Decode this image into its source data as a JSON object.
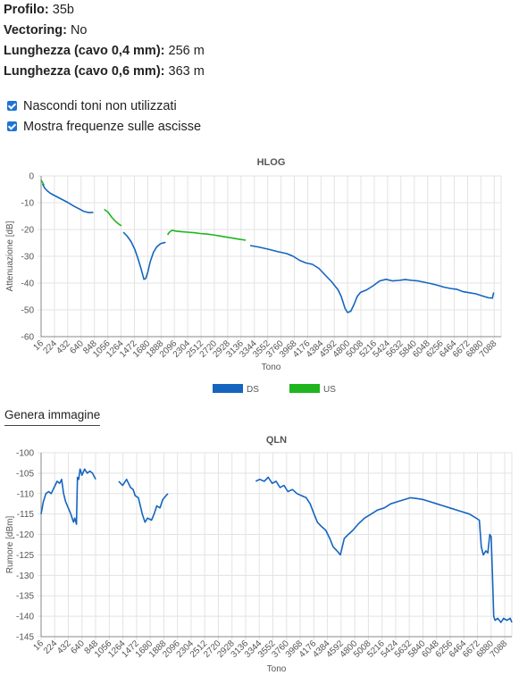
{
  "info": {
    "rows": [
      {
        "label": "Profilo",
        "value": "35b"
      },
      {
        "label": "Vectoring",
        "value": "No"
      },
      {
        "label": "Lunghezza (cavo 0,4 mm)",
        "value": "256 m"
      },
      {
        "label": "Lunghezza (cavo 0,6 mm)",
        "value": "363 m"
      }
    ]
  },
  "options": [
    {
      "label": "Nascondi toni non utilizzati",
      "checked": true
    },
    {
      "label": "Mostra frequenze sulle ascisse",
      "checked": true
    }
  ],
  "generate_image_label": "Genera immagine",
  "colors": {
    "ds": "#1565c0",
    "us": "#1fb51f",
    "grid": "#e3e3e3",
    "axis": "#888888"
  },
  "chart_data": [
    {
      "type": "line",
      "title": "HLOG",
      "xlabel": "Tono",
      "ylabel": "Attenuazione [dB]",
      "ylim": [
        -60,
        0
      ],
      "yticks": [
        0,
        -10,
        -20,
        -30,
        -40,
        -50,
        -60
      ],
      "xlim": [
        16,
        7196
      ],
      "xticks": [
        16,
        224,
        432,
        640,
        848,
        1056,
        1264,
        1472,
        1680,
        1888,
        2096,
        2304,
        2512,
        2720,
        2928,
        3136,
        3344,
        3552,
        3760,
        3968,
        4176,
        4384,
        4592,
        4800,
        5008,
        5216,
        5424,
        5632,
        5840,
        6048,
        6256,
        6464,
        6672,
        6880,
        7088
      ],
      "grid": true,
      "legend": "bottom-center",
      "legend_entries": [
        "DS",
        "US"
      ],
      "series": [
        {
          "name": "US",
          "color": "#1fb51f",
          "segments": [
            [
              [
                16,
                -1.5
              ],
              [
                40,
                -2.5
              ],
              [
                60,
                -3.5
              ]
            ],
            [
              [
                1000,
                -12.5
              ],
              [
                1060,
                -13.5
              ],
              [
                1120,
                -15.5
              ],
              [
                1180,
                -17
              ],
              [
                1240,
                -18.2
              ],
              [
                1270,
                -18.6
              ]
            ],
            [
              [
                1990,
                -22
              ],
              [
                2020,
                -21
              ],
              [
                2060,
                -20.3
              ],
              [
                2120,
                -20.6
              ],
              [
                2200,
                -20.8
              ],
              [
                2300,
                -21
              ],
              [
                2400,
                -21.2
              ],
              [
                2500,
                -21.5
              ],
              [
                2600,
                -21.7
              ],
              [
                2700,
                -22
              ],
              [
                2800,
                -22.4
              ],
              [
                2900,
                -22.8
              ],
              [
                3000,
                -23.2
              ],
              [
                3100,
                -23.6
              ],
              [
                3210,
                -24
              ]
            ]
          ]
        },
        {
          "name": "DS",
          "color": "#1565c0",
          "segments": [
            [
              [
                40,
                -3
              ],
              [
                70,
                -4.5
              ],
              [
                110,
                -5.5
              ],
              [
                150,
                -6.3
              ],
              [
                200,
                -7
              ],
              [
                280,
                -8
              ],
              [
                360,
                -9
              ],
              [
                440,
                -10
              ],
              [
                520,
                -11.2
              ],
              [
                600,
                -12.2
              ],
              [
                680,
                -13.2
              ],
              [
                760,
                -13.7
              ],
              [
                830,
                -13.6
              ]
            ],
            [
              [
                1300,
                -21
              ],
              [
                1360,
                -22.5
              ],
              [
                1420,
                -24.5
              ],
              [
                1480,
                -27.5
              ],
              [
                1530,
                -31
              ],
              [
                1580,
                -35
              ],
              [
                1620,
                -38.6
              ],
              [
                1650,
                -38.3
              ],
              [
                1680,
                -36
              ],
              [
                1720,
                -32
              ],
              [
                1770,
                -28.5
              ],
              [
                1820,
                -26.5
              ],
              [
                1880,
                -25.3
              ],
              [
                1940,
                -24.9
              ],
              [
                1960,
                -24.8
              ]
            ],
            [
              [
                3280,
                -26
              ],
              [
                3400,
                -26.5
              ],
              [
                3550,
                -27.3
              ],
              [
                3700,
                -28.2
              ],
              [
                3850,
                -29
              ],
              [
                3950,
                -30
              ],
              [
                4050,
                -31.5
              ],
              [
                4150,
                -32.5
              ],
              [
                4250,
                -33
              ],
              [
                4350,
                -34.5
              ],
              [
                4450,
                -37
              ],
              [
                4550,
                -39.5
              ],
              [
                4650,
                -42.5
              ],
              [
                4700,
                -45
              ],
              [
                4760,
                -49.5
              ],
              [
                4800,
                -51
              ],
              [
                4850,
                -50.5
              ],
              [
                4900,
                -48
              ],
              [
                4950,
                -45
              ],
              [
                5000,
                -43.5
              ],
              [
                5100,
                -42.5
              ],
              [
                5200,
                -41
              ],
              [
                5300,
                -39.2
              ],
              [
                5400,
                -38.6
              ],
              [
                5500,
                -39.2
              ],
              [
                5600,
                -39
              ],
              [
                5700,
                -38.7
              ],
              [
                5800,
                -39
              ],
              [
                5900,
                -39.2
              ],
              [
                6000,
                -39.7
              ],
              [
                6100,
                -40.2
              ],
              [
                6200,
                -40.8
              ],
              [
                6300,
                -41.5
              ],
              [
                6400,
                -42
              ],
              [
                6500,
                -42.3
              ],
              [
                6600,
                -43.2
              ],
              [
                6700,
                -43.6
              ],
              [
                6800,
                -44
              ],
              [
                6900,
                -44.8
              ],
              [
                7000,
                -45.5
              ],
              [
                7060,
                -45.6
              ],
              [
                7080,
                -43.5
              ]
            ]
          ]
        }
      ]
    },
    {
      "type": "line",
      "title": "QLN",
      "xlabel": "Tono",
      "ylabel": "Rumore [dBm]",
      "ylim": [
        -145,
        -100
      ],
      "yticks": [
        -100,
        -105,
        -110,
        -115,
        -120,
        -125,
        -130,
        -135,
        -140,
        -145
      ],
      "xlim": [
        16,
        7196
      ],
      "xticks": [
        16,
        224,
        432,
        640,
        848,
        1056,
        1264,
        1472,
        1680,
        1888,
        2096,
        2304,
        2512,
        2720,
        2928,
        3136,
        3344,
        3552,
        3760,
        3968,
        4176,
        4384,
        4592,
        4800,
        5008,
        5216,
        5424,
        5632,
        5840,
        6048,
        6256,
        6464,
        6672,
        6880,
        7088
      ],
      "grid": true,
      "series": [
        {
          "name": "",
          "color": "#1565c0",
          "segments": [
            [
              [
                16,
                -115
              ],
              [
                50,
                -112
              ],
              [
                90,
                -110
              ],
              [
                130,
                -109.5
              ],
              [
                170,
                -110
              ],
              [
                200,
                -109
              ],
              [
                230,
                -108
              ],
              [
                260,
                -107
              ],
              [
                300,
                -107.5
              ],
              [
                330,
                -106.5
              ],
              [
                360,
                -110
              ],
              [
                390,
                -112
              ],
              [
                430,
                -113.5
              ],
              [
                470,
                -115
              ],
              [
                510,
                -117
              ],
              [
                530,
                -116
              ],
              [
                555,
                -117.5
              ],
              [
                570,
                -106
              ],
              [
                590,
                -106.5
              ],
              [
                610,
                -104
              ],
              [
                640,
                -105.5
              ],
              [
                680,
                -104
              ],
              [
                720,
                -105
              ],
              [
                760,
                -104.5
              ],
              [
                800,
                -105
              ],
              [
                848,
                -106.5
              ]
            ],
            [
              [
                1200,
                -107
              ],
              [
                1260,
                -108
              ],
              [
                1320,
                -106.5
              ],
              [
                1380,
                -108.5
              ],
              [
                1420,
                -109
              ],
              [
                1450,
                -110.5
              ],
              [
                1500,
                -111
              ],
              [
                1530,
                -113
              ],
              [
                1560,
                -115
              ],
              [
                1600,
                -117
              ],
              [
                1640,
                -116
              ],
              [
                1700,
                -116.5
              ],
              [
                1740,
                -115
              ],
              [
                1780,
                -113
              ],
              [
                1830,
                -113.5
              ],
              [
                1870,
                -111.5
              ],
              [
                1920,
                -110.5
              ],
              [
                1950,
                -110
              ]
            ]
          ]
        },
        {
          "name": "",
          "color": "#1565c0",
          "segments": [
            [
              [
                3290,
                -107
              ],
              [
                3350,
                -106.5
              ],
              [
                3420,
                -107
              ],
              [
                3480,
                -106
              ],
              [
                3540,
                -107.5
              ],
              [
                3600,
                -107
              ],
              [
                3660,
                -108.5
              ],
              [
                3720,
                -108
              ],
              [
                3780,
                -109.5
              ],
              [
                3850,
                -109
              ],
              [
                3920,
                -110
              ],
              [
                3990,
                -110.5
              ],
              [
                4060,
                -111
              ],
              [
                4120,
                -112.5
              ],
              [
                4180,
                -115
              ],
              [
                4230,
                -117
              ],
              [
                4290,
                -118
              ],
              [
                4360,
                -119
              ],
              [
                4420,
                -121
              ],
              [
                4470,
                -123
              ],
              [
                4530,
                -124
              ],
              [
                4580,
                -125
              ],
              [
                4640,
                -121
              ],
              [
                4700,
                -120
              ],
              [
                4770,
                -119
              ],
              [
                4850,
                -117.5
              ],
              [
                4950,
                -116
              ],
              [
                5050,
                -115
              ],
              [
                5150,
                -114
              ],
              [
                5250,
                -113.5
              ],
              [
                5350,
                -112.5
              ],
              [
                5450,
                -112
              ],
              [
                5550,
                -111.5
              ],
              [
                5650,
                -111
              ],
              [
                5750,
                -111.2
              ],
              [
                5850,
                -111.5
              ],
              [
                5950,
                -112
              ],
              [
                6050,
                -112.5
              ],
              [
                6150,
                -113
              ],
              [
                6250,
                -113.5
              ],
              [
                6350,
                -114
              ],
              [
                6450,
                -114.5
              ],
              [
                6550,
                -115
              ],
              [
                6650,
                -116
              ],
              [
                6700,
                -116.5
              ],
              [
                6730,
                -123
              ],
              [
                6760,
                -125
              ],
              [
                6800,
                -124
              ],
              [
                6830,
                -124.5
              ],
              [
                6860,
                -120
              ],
              [
                6880,
                -120.5
              ],
              [
                6900,
                -130
              ],
              [
                6920,
                -140
              ],
              [
                6940,
                -141
              ],
              [
                6980,
                -140.5
              ],
              [
                7030,
                -141.5
              ],
              [
                7070,
                -140.5
              ],
              [
                7120,
                -141
              ],
              [
                7170,
                -140.5
              ],
              [
                7196,
                -141.5
              ]
            ]
          ]
        }
      ]
    }
  ]
}
